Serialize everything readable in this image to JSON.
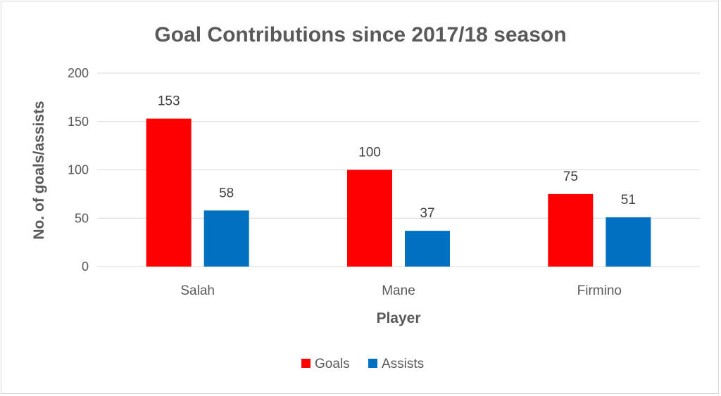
{
  "chart_data": {
    "type": "bar",
    "title": "Goal Contributions since 2017/18 season",
    "xlabel": "Player",
    "ylabel": "No. of goals/assists",
    "categories": [
      "Salah",
      "Mane",
      "Firmino"
    ],
    "series": [
      {
        "name": "Goals",
        "values": [
          153,
          100,
          75
        ],
        "color": "#ff0000"
      },
      {
        "name": "Assists",
        "values": [
          58,
          37,
          51
        ],
        "color": "#0070c0"
      }
    ],
    "ylim": [
      0,
      200
    ],
    "yticks": [
      0,
      50,
      100,
      150,
      200
    ],
    "grid": true,
    "legend": "bottom"
  }
}
